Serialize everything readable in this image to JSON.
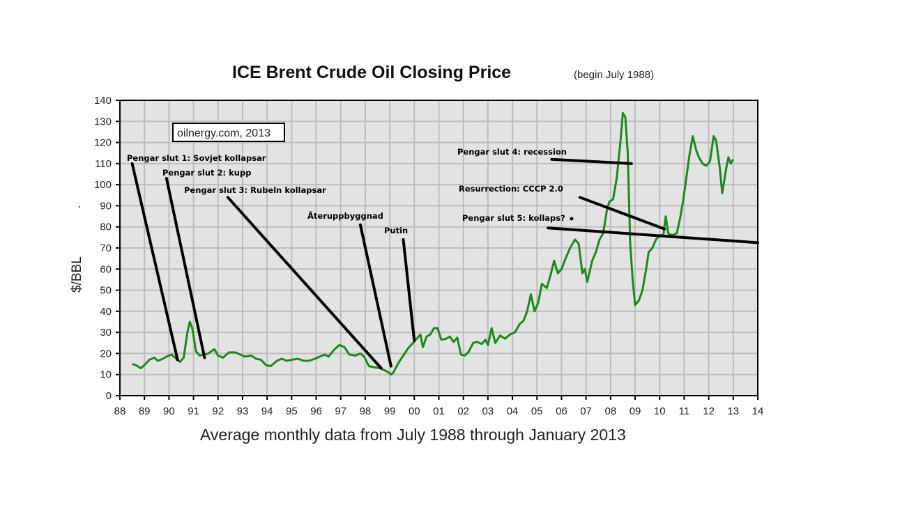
{
  "chart_data": {
    "type": "line",
    "title": "ICE Brent Crude Oil Closing Price",
    "subtitle": "(begin July 1988)",
    "xlabel": "Average  monthly data from July 1988 through January 2013",
    "ylabel": "$/BBL",
    "watermark": "oilnergy.com, 2013",
    "xlim": [
      1988,
      2014
    ],
    "ylim": [
      0,
      140
    ],
    "grid": true,
    "x_ticks": [
      {
        "value": 1988,
        "label": "88"
      },
      {
        "value": 1989,
        "label": "89"
      },
      {
        "value": 1990,
        "label": "90"
      },
      {
        "value": 1991,
        "label": "91"
      },
      {
        "value": 1992,
        "label": "92"
      },
      {
        "value": 1993,
        "label": "93"
      },
      {
        "value": 1994,
        "label": "94"
      },
      {
        "value": 1995,
        "label": "95"
      },
      {
        "value": 1996,
        "label": "96"
      },
      {
        "value": 1997,
        "label": "97"
      },
      {
        "value": 1998,
        "label": "98"
      },
      {
        "value": 1999,
        "label": "99"
      },
      {
        "value": 2000,
        "label": "00"
      },
      {
        "value": 2001,
        "label": "01"
      },
      {
        "value": 2002,
        "label": "02"
      },
      {
        "value": 2003,
        "label": "03"
      },
      {
        "value": 2004,
        "label": "04"
      },
      {
        "value": 2005,
        "label": "05"
      },
      {
        "value": 2006,
        "label": "06"
      },
      {
        "value": 2007,
        "label": "07"
      },
      {
        "value": 2008,
        "label": "08"
      },
      {
        "value": 2009,
        "label": "09"
      },
      {
        "value": 2010,
        "label": "10"
      },
      {
        "value": 2011,
        "label": "11"
      },
      {
        "value": 2012,
        "label": "12"
      },
      {
        "value": 2013,
        "label": "13"
      },
      {
        "value": 2014,
        "label": "14"
      }
    ],
    "y_ticks": [
      0,
      10,
      20,
      30,
      40,
      50,
      60,
      70,
      80,
      90,
      100,
      110,
      120,
      130,
      140
    ],
    "series": [
      {
        "name": "Brent monthly average",
        "color": "#1a8a1a",
        "points": [
          [
            1988.5,
            15
          ],
          [
            1988.65,
            14.5
          ],
          [
            1988.85,
            13
          ],
          [
            1989.0,
            14.5
          ],
          [
            1989.2,
            17
          ],
          [
            1989.4,
            18
          ],
          [
            1989.55,
            16.5
          ],
          [
            1989.75,
            17.5
          ],
          [
            1989.9,
            18.5
          ],
          [
            1990.1,
            19.5
          ],
          [
            1990.3,
            17.5
          ],
          [
            1990.45,
            16
          ],
          [
            1990.6,
            18
          ],
          [
            1990.75,
            30
          ],
          [
            1990.85,
            35
          ],
          [
            1990.95,
            32
          ],
          [
            1991.1,
            21
          ],
          [
            1991.25,
            19
          ],
          [
            1991.45,
            19.5
          ],
          [
            1991.6,
            20
          ],
          [
            1991.85,
            22
          ],
          [
            1992.0,
            19
          ],
          [
            1992.2,
            18
          ],
          [
            1992.45,
            20.5
          ],
          [
            1992.7,
            20.5
          ],
          [
            1992.9,
            19.5
          ],
          [
            1993.1,
            18.5
          ],
          [
            1993.35,
            19
          ],
          [
            1993.55,
            17.5
          ],
          [
            1993.75,
            17
          ],
          [
            1993.95,
            14.5
          ],
          [
            1994.15,
            14
          ],
          [
            1994.4,
            16.5
          ],
          [
            1994.6,
            17.5
          ],
          [
            1994.8,
            16.5
          ],
          [
            1995.0,
            17
          ],
          [
            1995.25,
            17.5
          ],
          [
            1995.5,
            16.5
          ],
          [
            1995.7,
            16.5
          ],
          [
            1995.95,
            17.5
          ],
          [
            1996.15,
            18.5
          ],
          [
            1996.35,
            19.5
          ],
          [
            1996.5,
            18.5
          ],
          [
            1996.75,
            22
          ],
          [
            1996.95,
            24
          ],
          [
            1997.15,
            23
          ],
          [
            1997.35,
            19.5
          ],
          [
            1997.6,
            19
          ],
          [
            1997.8,
            20
          ],
          [
            1997.95,
            18.5
          ],
          [
            1998.15,
            14
          ],
          [
            1998.35,
            13.5
          ],
          [
            1998.6,
            13
          ],
          [
            1998.8,
            12
          ],
          [
            1998.95,
            11
          ],
          [
            1999.05,
            10
          ],
          [
            1999.15,
            11
          ],
          [
            1999.35,
            15.5
          ],
          [
            1999.55,
            19
          ],
          [
            1999.75,
            22.5
          ],
          [
            1999.95,
            25
          ],
          [
            2000.1,
            27
          ],
          [
            2000.25,
            29
          ],
          [
            2000.35,
            23
          ],
          [
            2000.5,
            28
          ],
          [
            2000.65,
            29
          ],
          [
            2000.8,
            32
          ],
          [
            2000.95,
            32
          ],
          [
            2001.1,
            26.5
          ],
          [
            2001.3,
            27
          ],
          [
            2001.45,
            28
          ],
          [
            2001.6,
            25.5
          ],
          [
            2001.75,
            27.5
          ],
          [
            2001.9,
            19.5
          ],
          [
            2002.05,
            19
          ],
          [
            2002.2,
            20.5
          ],
          [
            2002.4,
            25
          ],
          [
            2002.55,
            25.5
          ],
          [
            2002.75,
            24.5
          ],
          [
            2002.9,
            26.5
          ],
          [
            2003.0,
            24
          ],
          [
            2003.15,
            32
          ],
          [
            2003.3,
            25
          ],
          [
            2003.5,
            28.5
          ],
          [
            2003.7,
            27
          ],
          [
            2003.9,
            29
          ],
          [
            2004.1,
            30
          ],
          [
            2004.3,
            34
          ],
          [
            2004.45,
            35.5
          ],
          [
            2004.6,
            40
          ],
          [
            2004.75,
            48
          ],
          [
            2004.9,
            40
          ],
          [
            2005.05,
            44
          ],
          [
            2005.2,
            53
          ],
          [
            2005.4,
            51
          ],
          [
            2005.55,
            57
          ],
          [
            2005.7,
            64
          ],
          [
            2005.85,
            58
          ],
          [
            2006.0,
            60
          ],
          [
            2006.2,
            66
          ],
          [
            2006.35,
            70
          ],
          [
            2006.55,
            74
          ],
          [
            2006.7,
            72
          ],
          [
            2006.85,
            58
          ],
          [
            2006.95,
            60
          ],
          [
            2007.05,
            54
          ],
          [
            2007.25,
            64
          ],
          [
            2007.4,
            68
          ],
          [
            2007.55,
            74
          ],
          [
            2007.7,
            77
          ],
          [
            2007.85,
            88
          ],
          [
            2007.95,
            92
          ],
          [
            2008.1,
            93
          ],
          [
            2008.25,
            103
          ],
          [
            2008.4,
            120
          ],
          [
            2008.5,
            134
          ],
          [
            2008.6,
            132
          ],
          [
            2008.7,
            115
          ],
          [
            2008.8,
            72
          ],
          [
            2008.9,
            55
          ],
          [
            2009.0,
            43
          ],
          [
            2009.15,
            45
          ],
          [
            2009.3,
            50
          ],
          [
            2009.45,
            60
          ],
          [
            2009.55,
            68
          ],
          [
            2009.7,
            70
          ],
          [
            2009.85,
            74
          ],
          [
            2010.0,
            76
          ],
          [
            2010.15,
            76
          ],
          [
            2010.25,
            85
          ],
          [
            2010.35,
            77
          ],
          [
            2010.5,
            76
          ],
          [
            2010.7,
            77
          ],
          [
            2010.85,
            85
          ],
          [
            2010.95,
            92
          ],
          [
            2011.05,
            100
          ],
          [
            2011.2,
            113
          ],
          [
            2011.35,
            123
          ],
          [
            2011.5,
            116
          ],
          [
            2011.6,
            113
          ],
          [
            2011.75,
            110
          ],
          [
            2011.9,
            109
          ],
          [
            2012.05,
            111
          ],
          [
            2012.2,
            123
          ],
          [
            2012.3,
            121
          ],
          [
            2012.45,
            108
          ],
          [
            2012.55,
            96
          ],
          [
            2012.7,
            107
          ],
          [
            2012.8,
            113
          ],
          [
            2012.9,
            110
          ],
          [
            2013.0,
            112
          ]
        ]
      }
    ],
    "annotations": [
      {
        "text": "Pengar slut 1: Sovjet kollapsar",
        "from": [
          1988.5,
          110
        ],
        "to": [
          1990.35,
          17
        ]
      },
      {
        "text": "Pengar slut 2: kupp",
        "from": [
          1989.9,
          103
        ],
        "to": [
          1991.45,
          18
        ]
      },
      {
        "text": "Pengar slut 3: Rubeln kollapsar",
        "from": [
          1992.4,
          94
        ],
        "to": [
          1998.65,
          13
        ]
      },
      {
        "text": "Återuppbyggnad",
        "from": [
          1997.8,
          81
        ],
        "to": [
          1999.05,
          14
        ]
      },
      {
        "text": "Putin",
        "from": [
          1999.55,
          74
        ],
        "to": [
          2000.0,
          26
        ]
      },
      {
        "text": "Pengar slut 4: recession",
        "from": [
          2005.6,
          112
        ],
        "to": [
          2008.85,
          110
        ]
      },
      {
        "text": "Resurrection: CCCP 2.0",
        "from": [
          2006.75,
          94
        ],
        "to": [
          2010.2,
          79
        ]
      },
      {
        "text": "Pengar slut 5: kollaps?",
        "from": [
          2005.45,
          79.5
        ],
        "to": [
          2014.0,
          72.5
        ]
      }
    ]
  }
}
